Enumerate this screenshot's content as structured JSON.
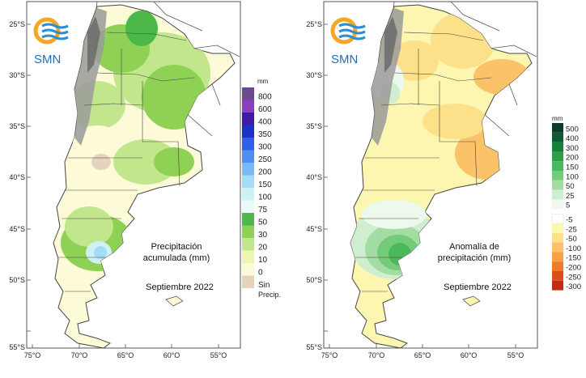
{
  "logo_text": "SMN",
  "colors": {
    "ocean": "#ffffff",
    "land_neighbors": "#ffffff",
    "border": "#333333",
    "andes_dark": "#6e6e6e",
    "andes_light": "#c8c8c8"
  },
  "panels": [
    {
      "id": "precip",
      "title_line1": "Precipitación",
      "title_line2": "acumulada (mm)",
      "period": "Septiembre 2022",
      "unit": "mm",
      "lat_labels": [
        "25°S",
        "30°S",
        "35°S",
        "40°S",
        "45°S",
        "50°S",
        "55°S"
      ],
      "lon_labels": [
        "75°O",
        "70°O",
        "65°O",
        "60°O",
        "55°O"
      ],
      "legend": [
        {
          "label": "800",
          "color": "#6b4a8f"
        },
        {
          "label": "600",
          "color": "#8a3fc0"
        },
        {
          "label": "400",
          "color": "#3e1aa8"
        },
        {
          "label": "350",
          "color": "#1c2fc9"
        },
        {
          "label": "300",
          "color": "#2f5ee8"
        },
        {
          "label": "250",
          "color": "#4f8ff2"
        },
        {
          "label": "200",
          "color": "#79b9f7"
        },
        {
          "label": "150",
          "color": "#a3dcf7"
        },
        {
          "label": "100",
          "color": "#cdf1f4"
        },
        {
          "label": "75",
          "color": "#eafaf6"
        },
        {
          "label": "50",
          "color": "#4cb848"
        },
        {
          "label": "30",
          "color": "#8ed155"
        },
        {
          "label": "20",
          "color": "#c2e68c"
        },
        {
          "label": "10",
          "color": "#eef6b4"
        },
        {
          "label": "0",
          "color": "#fdfbd7"
        },
        {
          "label": "Sin",
          "label2": "Precip.",
          "color": "#e5d3bd"
        }
      ]
    },
    {
      "id": "anomaly",
      "title_line1": "Anomalía de",
      "title_line2": "precipitación (mm)",
      "period": "Septiembre 2022",
      "unit": "mm",
      "lat_labels": [
        "25°S",
        "30°S",
        "35°S",
        "40°S",
        "45°S",
        "50°S",
        "55°S"
      ],
      "lon_labels": [
        "75°O",
        "70°O",
        "65°O",
        "60°O",
        "55°O"
      ],
      "legend": [
        {
          "label": "500",
          "color": "#0b3b2c"
        },
        {
          "label": "400",
          "color": "#0f5c34"
        },
        {
          "label": "300",
          "color": "#16803b"
        },
        {
          "label": "200",
          "color": "#2f9e44"
        },
        {
          "label": "150",
          "color": "#4bb85a"
        },
        {
          "label": "100",
          "color": "#74cb7a"
        },
        {
          "label": "50",
          "color": "#a3dda3"
        },
        {
          "label": "25",
          "color": "#cfeecf"
        },
        {
          "label": "5",
          "color": "#eef9ee"
        },
        {
          "label": "-5",
          "color": "#ffffff"
        },
        {
          "label": "-25",
          "color": "#fdf6b0"
        },
        {
          "label": "-50",
          "color": "#fde08a"
        },
        {
          "label": "-100",
          "color": "#fbc26a"
        },
        {
          "label": "-150",
          "color": "#f7a044"
        },
        {
          "label": "-200",
          "color": "#ee7a2a"
        },
        {
          "label": "-250",
          "color": "#db4d1d"
        },
        {
          "label": "-300",
          "color": "#c22a14"
        }
      ]
    }
  ]
}
